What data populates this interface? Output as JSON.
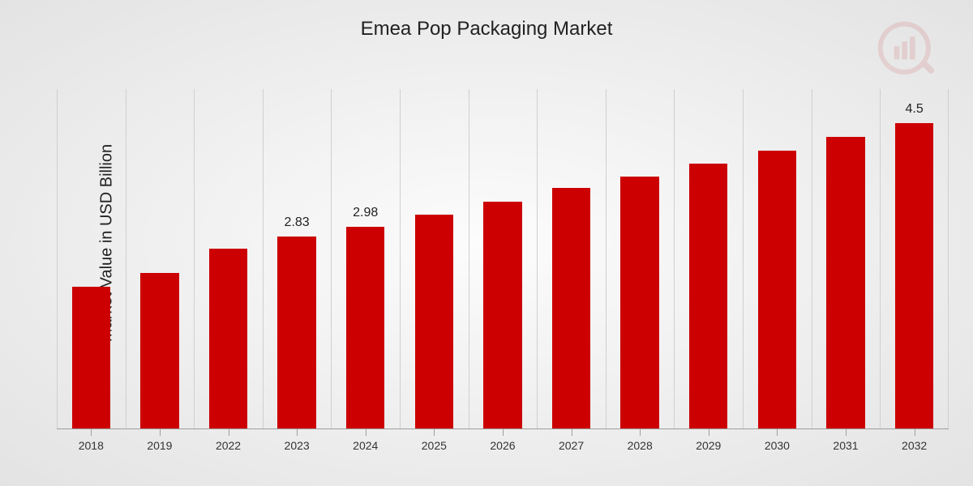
{
  "chart": {
    "type": "bar",
    "title": "Emea Pop Packaging Market",
    "ylabel": "Market Value in USD Billion",
    "title_fontsize": 24,
    "ylabel_fontsize": 20,
    "xlabel_fontsize": 14,
    "value_label_fontsize": 16,
    "bar_color": "#cc0000",
    "background_gradient": {
      "center": "#fcfcfc",
      "edge": "#e3e3e3"
    },
    "gridline_color": "#cfcfcf",
    "baseline_color": "#9e9e9e",
    "text_color": "#222222",
    "bar_width_ratio": 0.56,
    "ymin": 0,
    "ymax": 5.0,
    "categories": [
      "2018",
      "2019",
      "2022",
      "2023",
      "2024",
      "2025",
      "2026",
      "2027",
      "2028",
      "2029",
      "2030",
      "2031",
      "2032"
    ],
    "values": [
      2.1,
      2.3,
      2.65,
      2.83,
      2.98,
      3.15,
      3.35,
      3.55,
      3.72,
      3.9,
      4.1,
      4.3,
      4.5
    ],
    "value_labels": {
      "2023": "2.83",
      "2024": "2.98",
      "2032": "4.5"
    },
    "logo": {
      "opacity": 0.1,
      "outer_color": "#c00000",
      "handle_color": "#c00000",
      "bar_colors": [
        "#c00000",
        "#c00000",
        "#c00000"
      ]
    }
  }
}
